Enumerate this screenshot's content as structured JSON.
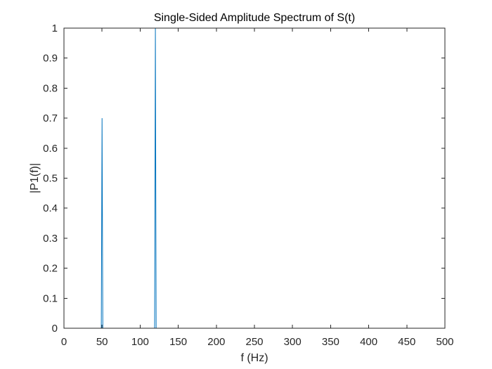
{
  "chart_data": {
    "type": "line",
    "title": "Single-Sided Amplitude Spectrum of S(t)",
    "xlabel": "f (Hz)",
    "ylabel": "|P1(f)|",
    "xlim": [
      0,
      500
    ],
    "ylim": [
      0,
      1
    ],
    "xticks": [
      "0",
      "50",
      "100",
      "150",
      "200",
      "250",
      "300",
      "350",
      "400",
      "450",
      "500"
    ],
    "yticks": [
      "0",
      "0.1",
      "0.2",
      "0.3",
      "0.4",
      "0.5",
      "0.6",
      "0.7",
      "0.8",
      "0.9",
      "1"
    ],
    "grid": false,
    "series": [
      {
        "color": "#0072BD",
        "x": [
          0,
          49,
          50,
          51,
          119,
          120,
          121,
          500
        ],
        "y": [
          0,
          0,
          0.7,
          0,
          0,
          1.0,
          0,
          0
        ]
      }
    ]
  }
}
